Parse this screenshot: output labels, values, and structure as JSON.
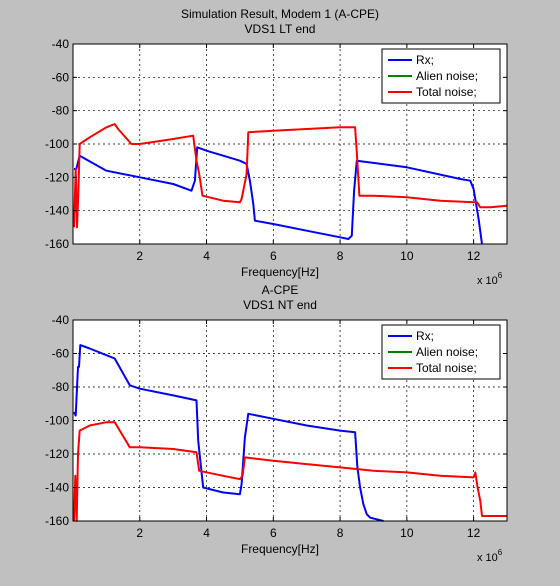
{
  "chart_data": [
    {
      "type": "line",
      "title": "Simulation Result, Modem 1 (A-CPE)",
      "subtitle": "VDS1 LT end",
      "xlabel": "Frequency[Hz]",
      "x_exponent_label": "x 10",
      "x_exponent": "6",
      "xlim": [
        0,
        13
      ],
      "ylim": [
        -160,
        -40
      ],
      "xticks": [
        2,
        4,
        6,
        8,
        10,
        12
      ],
      "yticks": [
        -40,
        -60,
        -80,
        -100,
        -120,
        -140,
        -160
      ],
      "grid": true,
      "legend_position": "top-right",
      "series": [
        {
          "name": "Rx;",
          "color": "#0000ff",
          "points": [
            [
              0.03,
              -115
            ],
            [
              0.1,
              -115
            ],
            [
              0.2,
              -107
            ],
            [
              1.0,
              -116
            ],
            [
              2.0,
              -120
            ],
            [
              3.0,
              -124
            ],
            [
              3.55,
              -128
            ],
            [
              3.65,
              -122
            ],
            [
              3.72,
              -102
            ],
            [
              4.0,
              -104
            ],
            [
              5.0,
              -110
            ],
            [
              5.2,
              -112
            ],
            [
              5.3,
              -122
            ],
            [
              5.4,
              -136
            ],
            [
              5.45,
              -146
            ],
            [
              6.0,
              -148
            ],
            [
              7.0,
              -152
            ],
            [
              8.0,
              -156
            ],
            [
              8.25,
              -157
            ],
            [
              8.35,
              -155
            ],
            [
              8.42,
              -128
            ],
            [
              8.5,
              -110
            ],
            [
              10.0,
              -114
            ],
            [
              11.6,
              -121
            ],
            [
              11.9,
              -122
            ],
            [
              12.0,
              -127
            ],
            [
              12.15,
              -145
            ],
            [
              12.25,
              -160
            ]
          ]
        },
        {
          "name": "Alien noise;",
          "color": "#008000",
          "points": []
        },
        {
          "name": "Total noise;",
          "color": "#ff0000",
          "points": [
            [
              0.03,
              -150
            ],
            [
              0.08,
              -115
            ],
            [
              0.12,
              -150
            ],
            [
              0.16,
              -130
            ],
            [
              0.2,
              -100
            ],
            [
              0.5,
              -96
            ],
            [
              1.0,
              -90
            ],
            [
              1.25,
              -88
            ],
            [
              1.35,
              -91
            ],
            [
              1.75,
              -100
            ],
            [
              2.0,
              -100
            ],
            [
              3.0,
              -97
            ],
            [
              3.6,
              -95
            ],
            [
              3.7,
              -110
            ],
            [
              3.78,
              -118
            ],
            [
              3.88,
              -131
            ],
            [
              4.5,
              -134
            ],
            [
              5.0,
              -135
            ],
            [
              5.05,
              -133
            ],
            [
              5.2,
              -118
            ],
            [
              5.25,
              -93
            ],
            [
              6.0,
              -92
            ],
            [
              7.0,
              -91
            ],
            [
              8.0,
              -90
            ],
            [
              8.45,
              -90
            ],
            [
              8.5,
              -105
            ],
            [
              8.58,
              -131
            ],
            [
              9.0,
              -131
            ],
            [
              10.0,
              -132
            ],
            [
              11.0,
              -134
            ],
            [
              12.0,
              -135
            ],
            [
              12.1,
              -135
            ],
            [
              12.2,
              -138
            ],
            [
              12.5,
              -138
            ],
            [
              13.0,
              -137
            ]
          ]
        }
      ]
    },
    {
      "type": "line",
      "title": "A-CPE",
      "subtitle": "VDS1 NT end",
      "xlabel": "Frequency[Hz]",
      "x_exponent_label": "x 10",
      "x_exponent": "6",
      "xlim": [
        0,
        13
      ],
      "ylim": [
        -160,
        -40
      ],
      "xticks": [
        2,
        4,
        6,
        8,
        10,
        12
      ],
      "yticks": [
        -40,
        -60,
        -80,
        -100,
        -120,
        -140,
        -160
      ],
      "grid": true,
      "legend_position": "top-right",
      "series": [
        {
          "name": "Rx;",
          "color": "#0000ff",
          "points": [
            [
              0.03,
              -95
            ],
            [
              0.08,
              -97
            ],
            [
              0.15,
              -68
            ],
            [
              0.18,
              -68
            ],
            [
              0.22,
              -55
            ],
            [
              0.5,
              -57
            ],
            [
              1.0,
              -61
            ],
            [
              1.25,
              -63
            ],
            [
              1.7,
              -79
            ],
            [
              2.0,
              -81
            ],
            [
              3.0,
              -85
            ],
            [
              3.7,
              -88
            ],
            [
              3.75,
              -112
            ],
            [
              3.82,
              -125
            ],
            [
              3.9,
              -140
            ],
            [
              4.5,
              -143
            ],
            [
              5.0,
              -144
            ],
            [
              5.05,
              -138
            ],
            [
              5.15,
              -110
            ],
            [
              5.25,
              -96
            ],
            [
              6.0,
              -99
            ],
            [
              7.0,
              -103
            ],
            [
              8.0,
              -106
            ],
            [
              8.45,
              -107
            ],
            [
              8.52,
              -128
            ],
            [
              8.6,
              -140
            ],
            [
              8.7,
              -150
            ],
            [
              8.8,
              -156
            ],
            [
              8.9,
              -158
            ],
            [
              9.3,
              -160
            ]
          ]
        },
        {
          "name": "Alien noise;",
          "color": "#008000",
          "points": []
        },
        {
          "name": "Total noise;",
          "color": "#ff0000",
          "points": [
            [
              0.03,
              -160
            ],
            [
              0.07,
              -133
            ],
            [
              0.11,
              -160
            ],
            [
              0.15,
              -120
            ],
            [
              0.2,
              -106
            ],
            [
              0.5,
              -103
            ],
            [
              1.0,
              -101
            ],
            [
              1.25,
              -101
            ],
            [
              1.7,
              -116
            ],
            [
              2.0,
              -116
            ],
            [
              3.0,
              -117
            ],
            [
              3.7,
              -119
            ],
            [
              3.78,
              -130
            ],
            [
              4.5,
              -133
            ],
            [
              5.0,
              -135
            ],
            [
              5.08,
              -133
            ],
            [
              5.15,
              -122
            ],
            [
              6.0,
              -124
            ],
            [
              7.0,
              -126
            ],
            [
              8.0,
              -128
            ],
            [
              9.0,
              -130
            ],
            [
              10.0,
              -131
            ],
            [
              11.0,
              -133
            ],
            [
              12.0,
              -134
            ],
            [
              12.05,
              -131
            ],
            [
              12.12,
              -140
            ],
            [
              12.2,
              -148
            ],
            [
              12.25,
              -157
            ],
            [
              13.0,
              -157
            ]
          ]
        }
      ]
    }
  ]
}
